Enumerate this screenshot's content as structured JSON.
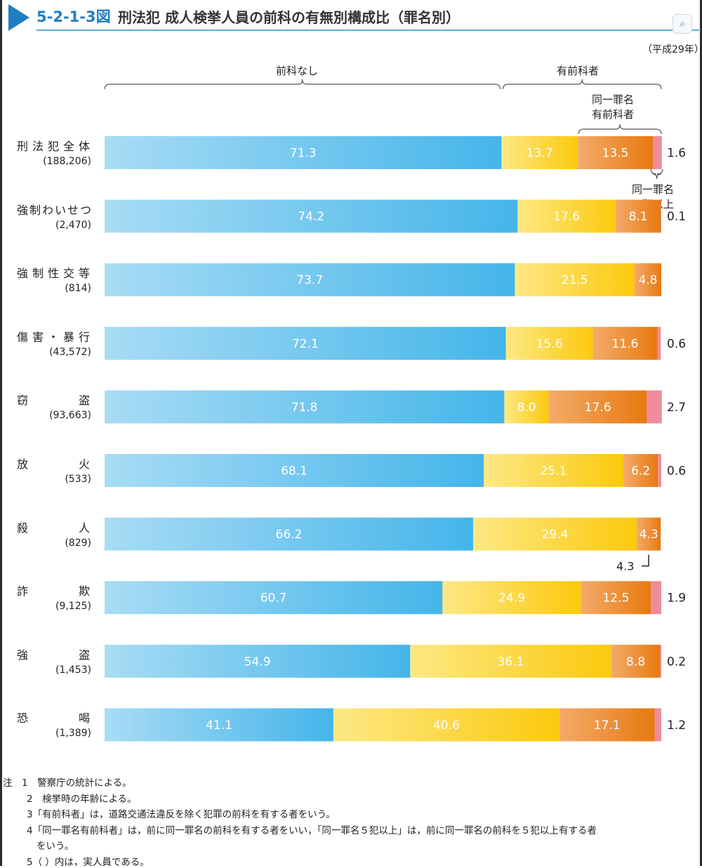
{
  "header": {
    "figure_id": "5-2-1-3図",
    "title": "刑法犯 成人検挙人員の前科の有無別構成比（罪名別）",
    "year": "（平成29年）"
  },
  "braces": {
    "no_record": "前科なし",
    "with_record": "有前科者",
    "same_crime_line1": "同一罪名",
    "same_crime_line2": "有前科者",
    "five_plus_line1": "同一罪名",
    "five_plus_line2": "５犯以上"
  },
  "colors": {
    "no_record": "#5bbdec",
    "other_record": "#fdd227",
    "same_crime": "#ee8a2c",
    "five_plus": "#ef8c9a",
    "accent": "#1f7fc2"
  },
  "chart_data": {
    "type": "bar",
    "orientation": "horizontal",
    "stacked": true,
    "unit": "%",
    "categories": [
      {
        "name": "刑法犯全体",
        "count": "(188,206)"
      },
      {
        "name": "強制わいせつ",
        "count": "(2,470)"
      },
      {
        "name": "強制性交等",
        "count": "(814)"
      },
      {
        "name": "傷害・暴行",
        "count": "(43,572)"
      },
      {
        "name": "窃盗",
        "count": "(93,663)"
      },
      {
        "name": "放火",
        "count": "(533)"
      },
      {
        "name": "殺人",
        "count": "(829)"
      },
      {
        "name": "詐欺",
        "count": "(9,125)"
      },
      {
        "name": "強盗",
        "count": "(1,453)"
      },
      {
        "name": "恐喝",
        "count": "(1,389)"
      }
    ],
    "series": [
      {
        "key": "no_record",
        "values": [
          71.3,
          74.2,
          73.7,
          72.1,
          71.8,
          68.1,
          66.2,
          60.7,
          54.9,
          41.1
        ],
        "labels": [
          "71.3",
          "74.2",
          "73.7",
          "72.1",
          "71.8",
          "68.1",
          "66.2",
          "60.7",
          "54.9",
          "41.1"
        ]
      },
      {
        "key": "other_record",
        "values": [
          13.7,
          17.6,
          21.5,
          15.6,
          8.0,
          25.1,
          29.4,
          24.9,
          36.1,
          40.6
        ],
        "labels": [
          "13.7",
          "17.6",
          "21.5",
          "15.6",
          "8.0",
          "25.1",
          "29.4",
          "24.9",
          "36.1",
          "40.6"
        ]
      },
      {
        "key": "same_crime",
        "values": [
          13.5,
          8.1,
          4.8,
          11.6,
          17.6,
          6.2,
          4.3,
          12.5,
          8.8,
          17.1
        ],
        "labels": [
          "13.5",
          "8.1",
          "4.8",
          "11.6",
          "17.6",
          "6.2",
          "4.3",
          "12.5",
          "8.8",
          "17.1"
        ]
      },
      {
        "key": "five_plus",
        "values": [
          1.6,
          0.1,
          0,
          0.6,
          2.7,
          0.6,
          0,
          1.9,
          0.2,
          1.2
        ],
        "labels": [
          "1.6",
          "0.1",
          "",
          "0.6",
          "2.7",
          "0.6",
          "",
          "1.9",
          "0.2",
          "1.2"
        ]
      }
    ]
  },
  "notes": [
    {
      "line": "注　1　警察庁の統計による。"
    },
    {
      "line": "2　検挙時の年齢による。"
    },
    {
      "line": "3「有前科者」は，道路交通法違反を除く犯罪の前科を有する者をいう。"
    },
    {
      "line": "4「同一罪名有前科者」は，前に同一罪名の前科を有する者をいい，「同一罪名５犯以上」は，前に同一罪名の前科を５犯以上有する者"
    },
    {
      "line": "をいう。"
    },
    {
      "line": "5（ ）内は，実人員である。"
    }
  ]
}
